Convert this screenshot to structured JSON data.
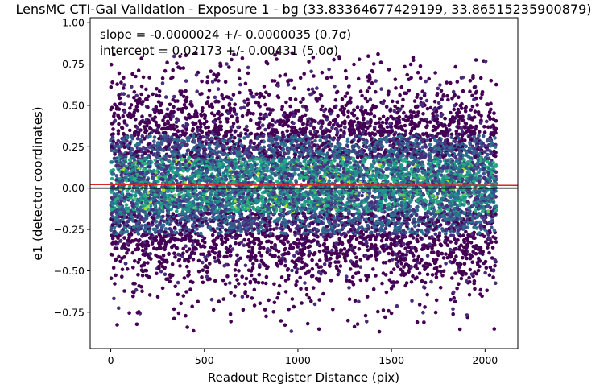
{
  "chart_data": {
    "type": "scatter",
    "title": "LensMC CTI-Gal Validation - Exposure 1 - bg (33.83364677429199, 33.86515235900879)",
    "xlabel": "Readout Register Distance (pix)",
    "ylabel": "e1 (detector coordinates)",
    "xlim": [
      -110,
      2175
    ],
    "ylim": [
      -0.97,
      1.03
    ],
    "xticks": [
      0,
      500,
      1000,
      1500,
      2000
    ],
    "xtick_labels": [
      "0",
      "500",
      "1000",
      "1500",
      "2000"
    ],
    "yticks": [
      -0.75,
      -0.5,
      -0.25,
      0.0,
      0.25,
      0.5,
      0.75,
      1.0
    ],
    "ytick_labels": [
      "−0.75",
      "−0.50",
      "−0.25",
      "0.00",
      "0.25",
      "0.50",
      "0.75",
      "1.00"
    ],
    "grid": false,
    "annotations": [
      "slope = -0.0000024 +/- 0.0000035 (0.7σ)",
      "intercept = 0.02173 +/- 0.00431 (5.0σ)"
    ],
    "fit_line": {
      "slope": -2.4e-06,
      "intercept": 0.02173,
      "color": "#d62728"
    },
    "reference_line": {
      "y": 0.0,
      "color": "#000000"
    },
    "colormap": "viridis (point density)",
    "points": {
      "count": 9000,
      "x_range": [
        0,
        2060
      ],
      "center_y": 0.02,
      "spread_y": 0.27,
      "y_range": [
        -0.87,
        0.82
      ]
    }
  },
  "colors": {
    "fit_line": "#d62728",
    "zero_line": "#000000",
    "density_low": "#440154",
    "density_mid": "#21918c",
    "density_high": "#fde725"
  }
}
